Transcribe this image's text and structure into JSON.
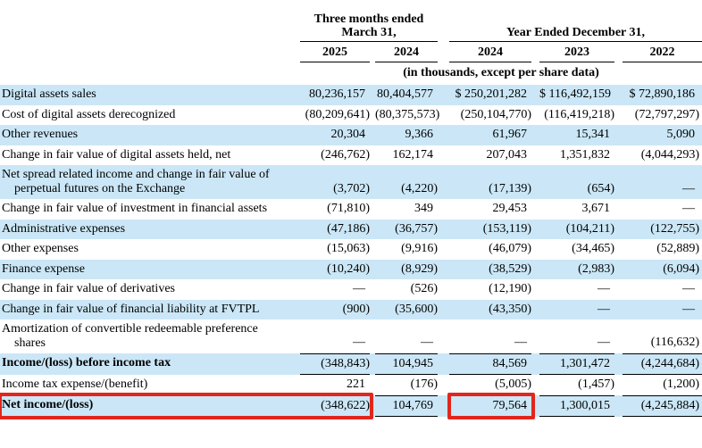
{
  "colors": {
    "row_highlight": "#cbe7f7",
    "callout_red": "#e2261c"
  },
  "header": {
    "three_months_line1": "Three months ended",
    "three_months_line2": "March 31,",
    "year_ended": "Year Ended December 31,",
    "years": [
      "2025",
      "2024",
      "2024",
      "2023",
      "2022"
    ],
    "units_note": "(in thousands, except per share data)"
  },
  "rows": [
    {
      "label": "Digital assets sales",
      "values": [
        "80,236,157",
        "80,404,577",
        "$ 250,201,282",
        "$ 116,492,159",
        "$ 72,890,186"
      ],
      "shaded": true,
      "bold": false,
      "rule": false
    },
    {
      "label": "Cost of digital assets derecognized",
      "values": [
        "(80,209,641)",
        "(80,375,573)",
        "(250,104,770)",
        "(116,419,218)",
        "(72,797,297)"
      ],
      "shaded": false,
      "bold": false,
      "rule": false
    },
    {
      "label": "Other revenues",
      "values": [
        "20,304",
        "9,366",
        "61,967",
        "15,341",
        "5,090"
      ],
      "shaded": true,
      "bold": false,
      "rule": false
    },
    {
      "label": "Change in fair value of digital assets held, net",
      "values": [
        "(246,762)",
        "162,174",
        "207,043",
        "1,351,832",
        "(4,044,293)"
      ],
      "shaded": false,
      "bold": false,
      "rule": false
    },
    {
      "label": "Net spread related income and change in fair value of perpetual futures on the Exchange",
      "values": [
        "(3,702)",
        "(4,220)",
        "(17,139)",
        "(654)",
        "—"
      ],
      "shaded": true,
      "bold": false,
      "rule": false
    },
    {
      "label": "Change in fair value of investment in financial assets",
      "values": [
        "(71,810)",
        "349",
        "29,453",
        "3,671",
        "—"
      ],
      "shaded": false,
      "bold": false,
      "rule": false
    },
    {
      "label": "Administrative expenses",
      "values": [
        "(47,186)",
        "(36,757)",
        "(153,119)",
        "(104,211)",
        "(122,755)"
      ],
      "shaded": true,
      "bold": false,
      "rule": false
    },
    {
      "label": "Other expenses",
      "values": [
        "(15,063)",
        "(9,916)",
        "(46,079)",
        "(34,465)",
        "(52,889)"
      ],
      "shaded": false,
      "bold": false,
      "rule": false
    },
    {
      "label": "Finance expense",
      "values": [
        "(10,240)",
        "(8,929)",
        "(38,529)",
        "(2,983)",
        "(6,094)"
      ],
      "shaded": true,
      "bold": false,
      "rule": false
    },
    {
      "label": "Change in fair value of derivatives",
      "values": [
        "—",
        "(526)",
        "(12,190)",
        "—",
        "—"
      ],
      "shaded": false,
      "bold": false,
      "rule": false
    },
    {
      "label": "Change in fair value of financial liability at FVTPL",
      "values": [
        "(900)",
        "(35,600)",
        "(43,350)",
        "—",
        "—"
      ],
      "shaded": true,
      "bold": false,
      "rule": false
    },
    {
      "label": "Amortization of convertible redeemable preference shares",
      "values": [
        "—",
        "—",
        "—",
        "—",
        "(116,632)"
      ],
      "shaded": false,
      "bold": false,
      "rule": true
    },
    {
      "label": "Income/(loss) before income tax",
      "values": [
        "(348,843)",
        "104,945",
        "84,569",
        "1,301,472",
        "(4,244,684)"
      ],
      "shaded": true,
      "bold": true,
      "rule": true
    },
    {
      "label": "Income tax expense/(benefit)",
      "values": [
        "221",
        "(176)",
        "(5,005)",
        "(1,457)",
        "(1,200)"
      ],
      "shaded": false,
      "bold": false,
      "rule": true
    },
    {
      "label": "Net income/(loss)",
      "values": [
        "(348,622)",
        "104,769",
        "79,564",
        "1,300,015",
        "(4,245,884)"
      ],
      "shaded": true,
      "bold": true,
      "rule": true
    }
  ],
  "callouts": [
    {
      "name": "callout-net-income-loss-q1-2025",
      "row": 14,
      "from": "label",
      "to": "c1"
    },
    {
      "name": "callout-net-income-fy2024",
      "row": 14,
      "from": "c3",
      "to": "c3"
    }
  ]
}
